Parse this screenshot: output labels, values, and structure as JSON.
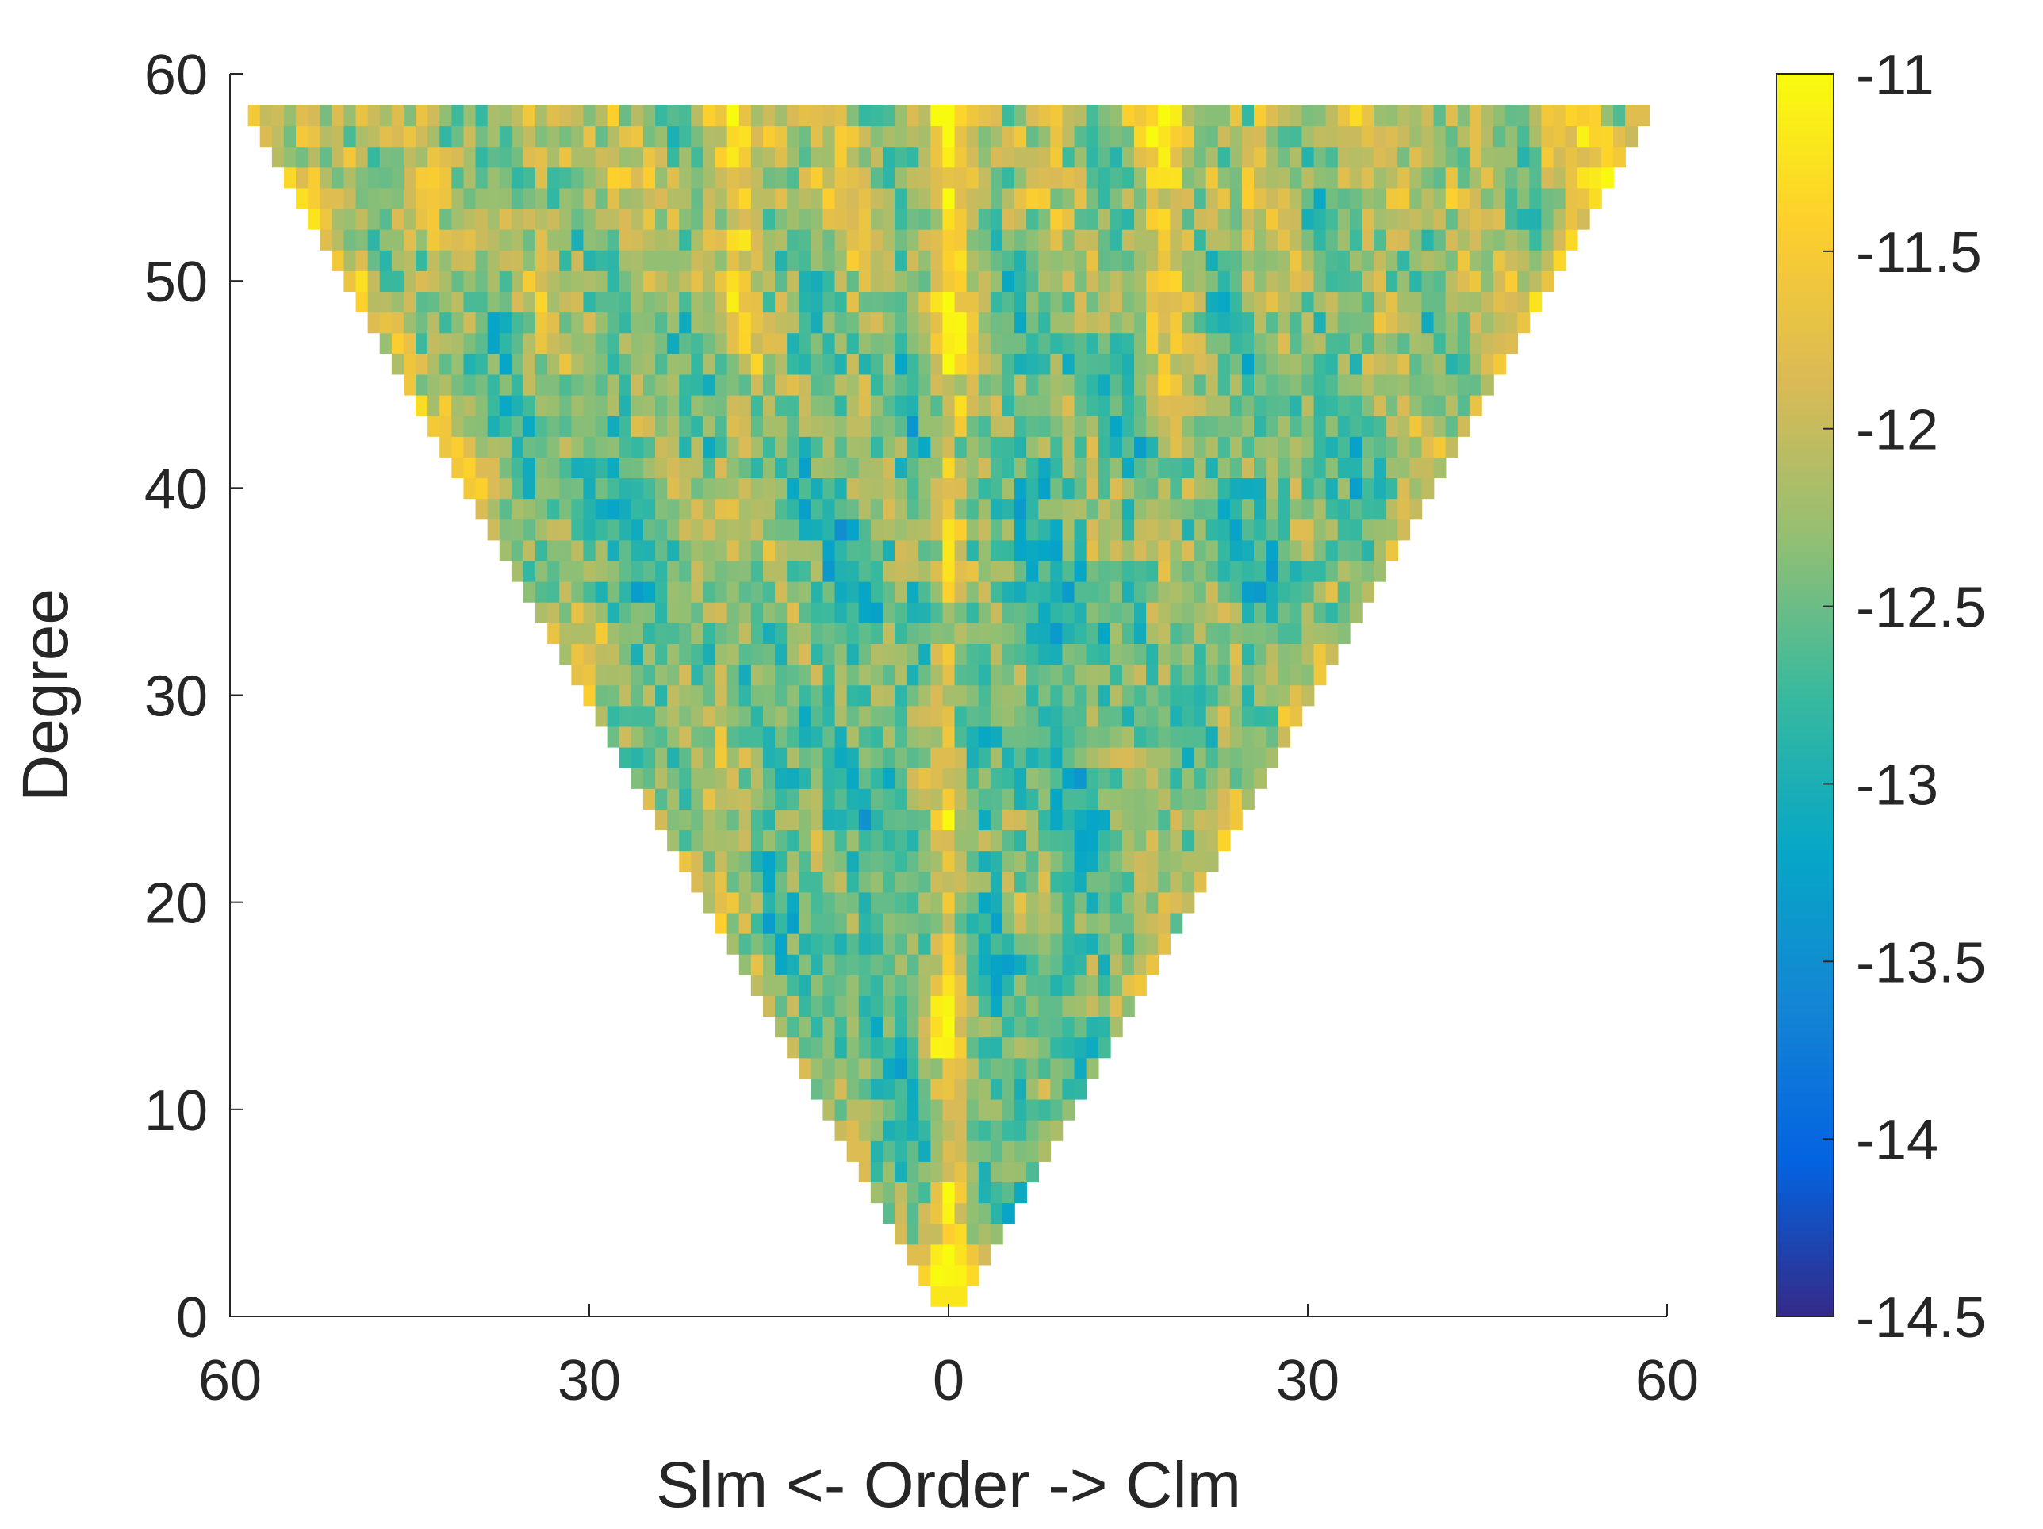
{
  "chart_data": {
    "type": "heatmap",
    "title": "",
    "xlabel": "Slm <- Order -> Clm",
    "ylabel": "Degree",
    "x_ticks": [
      "60",
      "30",
      "0",
      "30",
      "60"
    ],
    "x_tick_values": [
      -60,
      -30,
      0,
      30,
      60
    ],
    "xlim": [
      -60,
      60
    ],
    "y_ticks": [
      "0",
      "10",
      "20",
      "30",
      "40",
      "50",
      "60"
    ],
    "y_tick_values": [
      0,
      10,
      20,
      30,
      40,
      50,
      60
    ],
    "ylim": [
      0,
      60
    ],
    "max_degree": 58,
    "min_degree": 1,
    "domain": "triangular: |order| <= degree",
    "colorbar": {
      "ticks": [
        "-11",
        "-11.5",
        "-12",
        "-12.5",
        "-13",
        "-13.5",
        "-14",
        "-14.5"
      ],
      "tick_values": [
        -11,
        -11.5,
        -12,
        -12.5,
        -13,
        -13.5,
        -14,
        -14.5
      ],
      "clim": [
        -14.5,
        -11
      ],
      "colormap": "parula"
    },
    "value_pattern": {
      "typical_range": [
        -13.5,
        -11.5
      ],
      "background_level": -12.6,
      "zonal_band_order_0_level": -11.6,
      "high_degree_sectoral_edges_level": -11.8,
      "band_near_order_plus_minus_18_level": -12.0,
      "lowest_degrees_level": -11.2
    },
    "colors": {
      "parula": [
        "#352a87",
        "#0363e1",
        "#1485d4",
        "#06a7c6",
        "#38b99e",
        "#92bf73",
        "#d9ba56",
        "#fcce2e",
        "#f9fb0e"
      ]
    }
  }
}
